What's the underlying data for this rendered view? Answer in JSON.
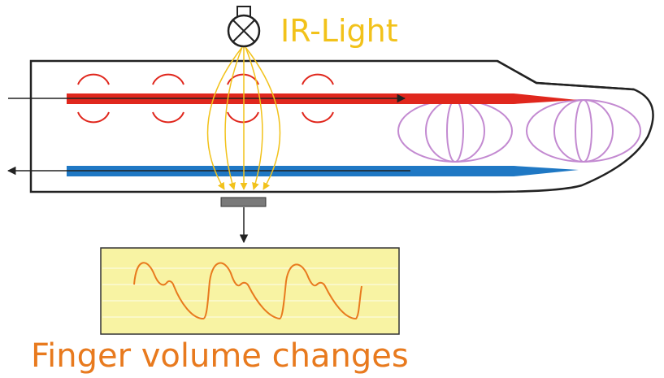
{
  "diagram": {
    "light_label": "IR-Light",
    "bottom_label": "Finger volume changes",
    "colors": {
      "outline": "#222222",
      "artery": "#e0271d",
      "vein": "#1f78c4",
      "light_rays": "#f2c21b",
      "capillaries": "#c38ad1",
      "sensor": "#7a7a7a",
      "chart_bg": "#f8f3a3",
      "waveform": "#e87a1e",
      "caption": "#e87a1e"
    },
    "icons": {
      "light_source": "bulb-icon"
    }
  }
}
